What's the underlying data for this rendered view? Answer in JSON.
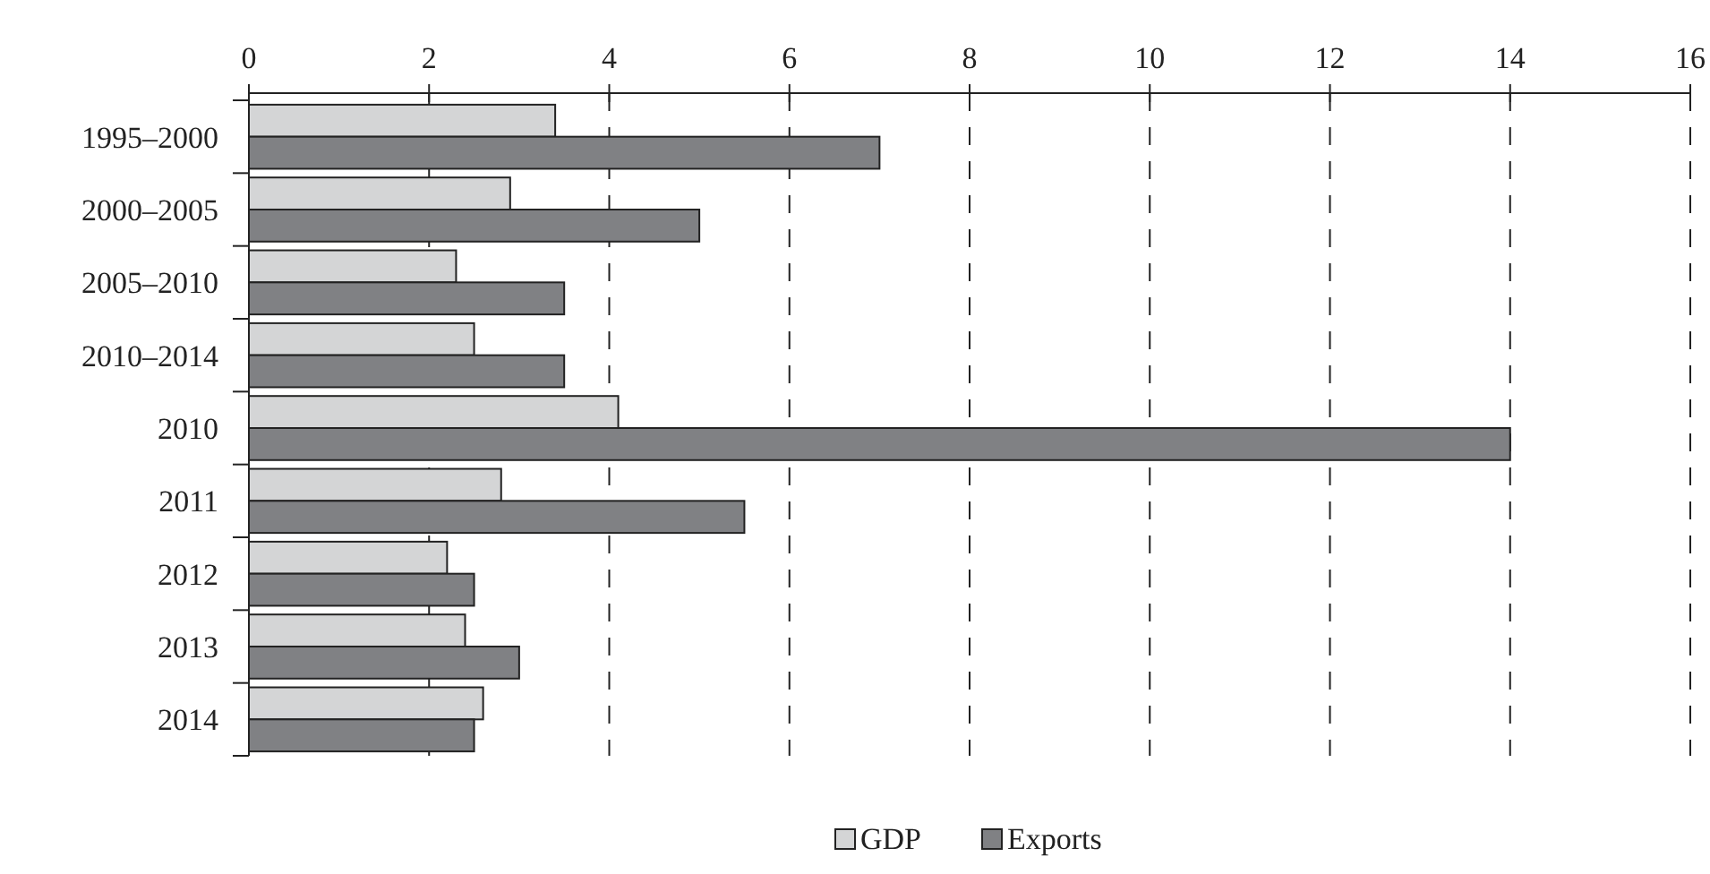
{
  "chart_data": {
    "type": "bar",
    "orientation": "horizontal",
    "categories": [
      "1995–2000",
      "2000–2005",
      "2005–2010",
      "2010–2014",
      "2010",
      "2011",
      "2012",
      "2013",
      "2014"
    ],
    "series": [
      {
        "name": "GDP",
        "color": "#d4d5d6",
        "values": [
          3.4,
          2.9,
          2.3,
          2.5,
          4.1,
          2.8,
          2.2,
          2.4,
          2.6
        ]
      },
      {
        "name": "Exports",
        "color": "#808184",
        "values": [
          7.0,
          5.0,
          3.5,
          3.5,
          14.0,
          5.5,
          2.5,
          3.0,
          2.5
        ]
      }
    ],
    "xlim": [
      0,
      16
    ],
    "xticks": [
      0,
      2,
      4,
      6,
      8,
      10,
      12,
      14,
      16
    ],
    "grid": "x",
    "legend": "bottom"
  }
}
